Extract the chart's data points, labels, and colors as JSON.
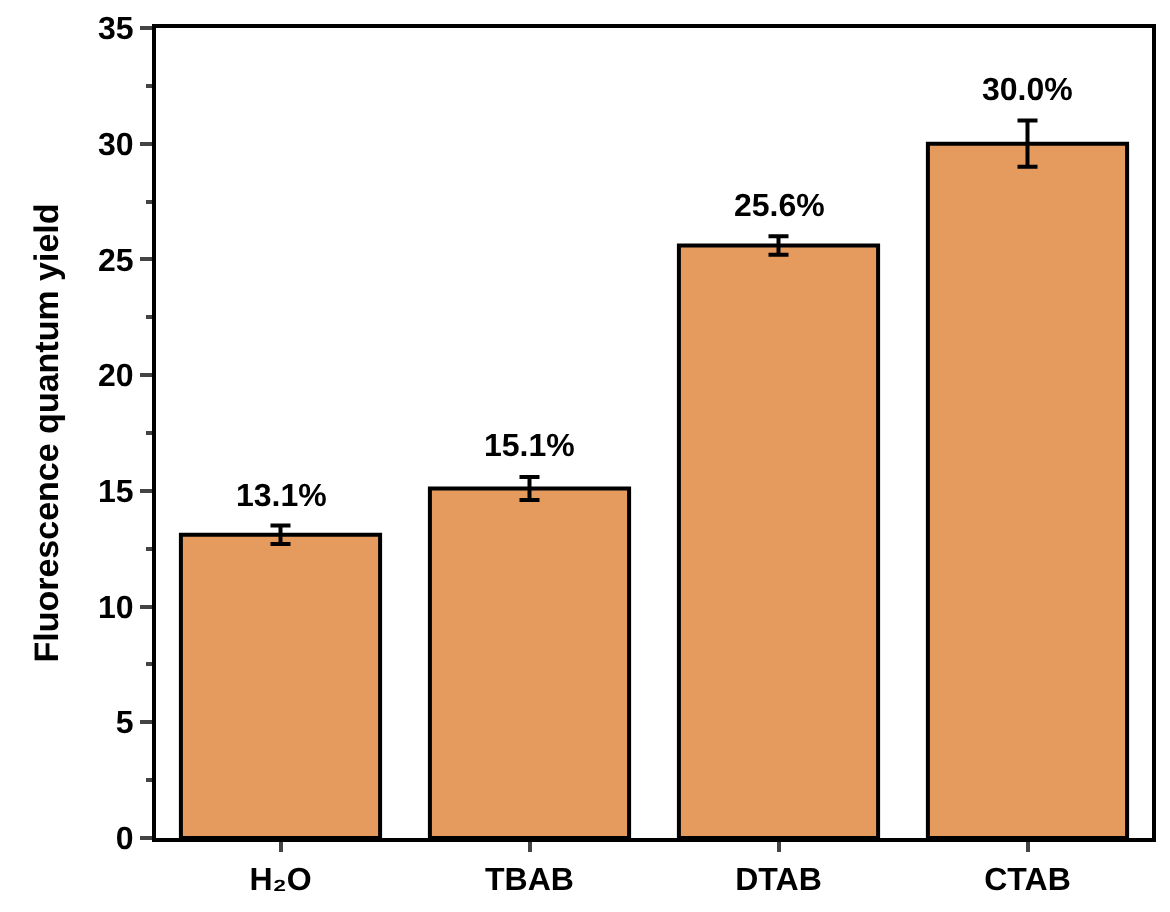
{
  "chart_data": {
    "type": "bar",
    "ylabel": "Fluorescence quantum yield",
    "categories": [
      "H₂O",
      "TBAB",
      "DTAB",
      "CTAB"
    ],
    "values": [
      13.1,
      15.1,
      25.6,
      30.0
    ],
    "value_labels": [
      "13.1%",
      "15.1%",
      "25.6%",
      "30.0%"
    ],
    "errors": [
      0.4,
      0.5,
      0.4,
      1.0
    ],
    "color": "#e59a5e",
    "ylim": [
      0,
      35
    ],
    "yticks": [
      0,
      5,
      10,
      15,
      20,
      25,
      30,
      35
    ]
  }
}
